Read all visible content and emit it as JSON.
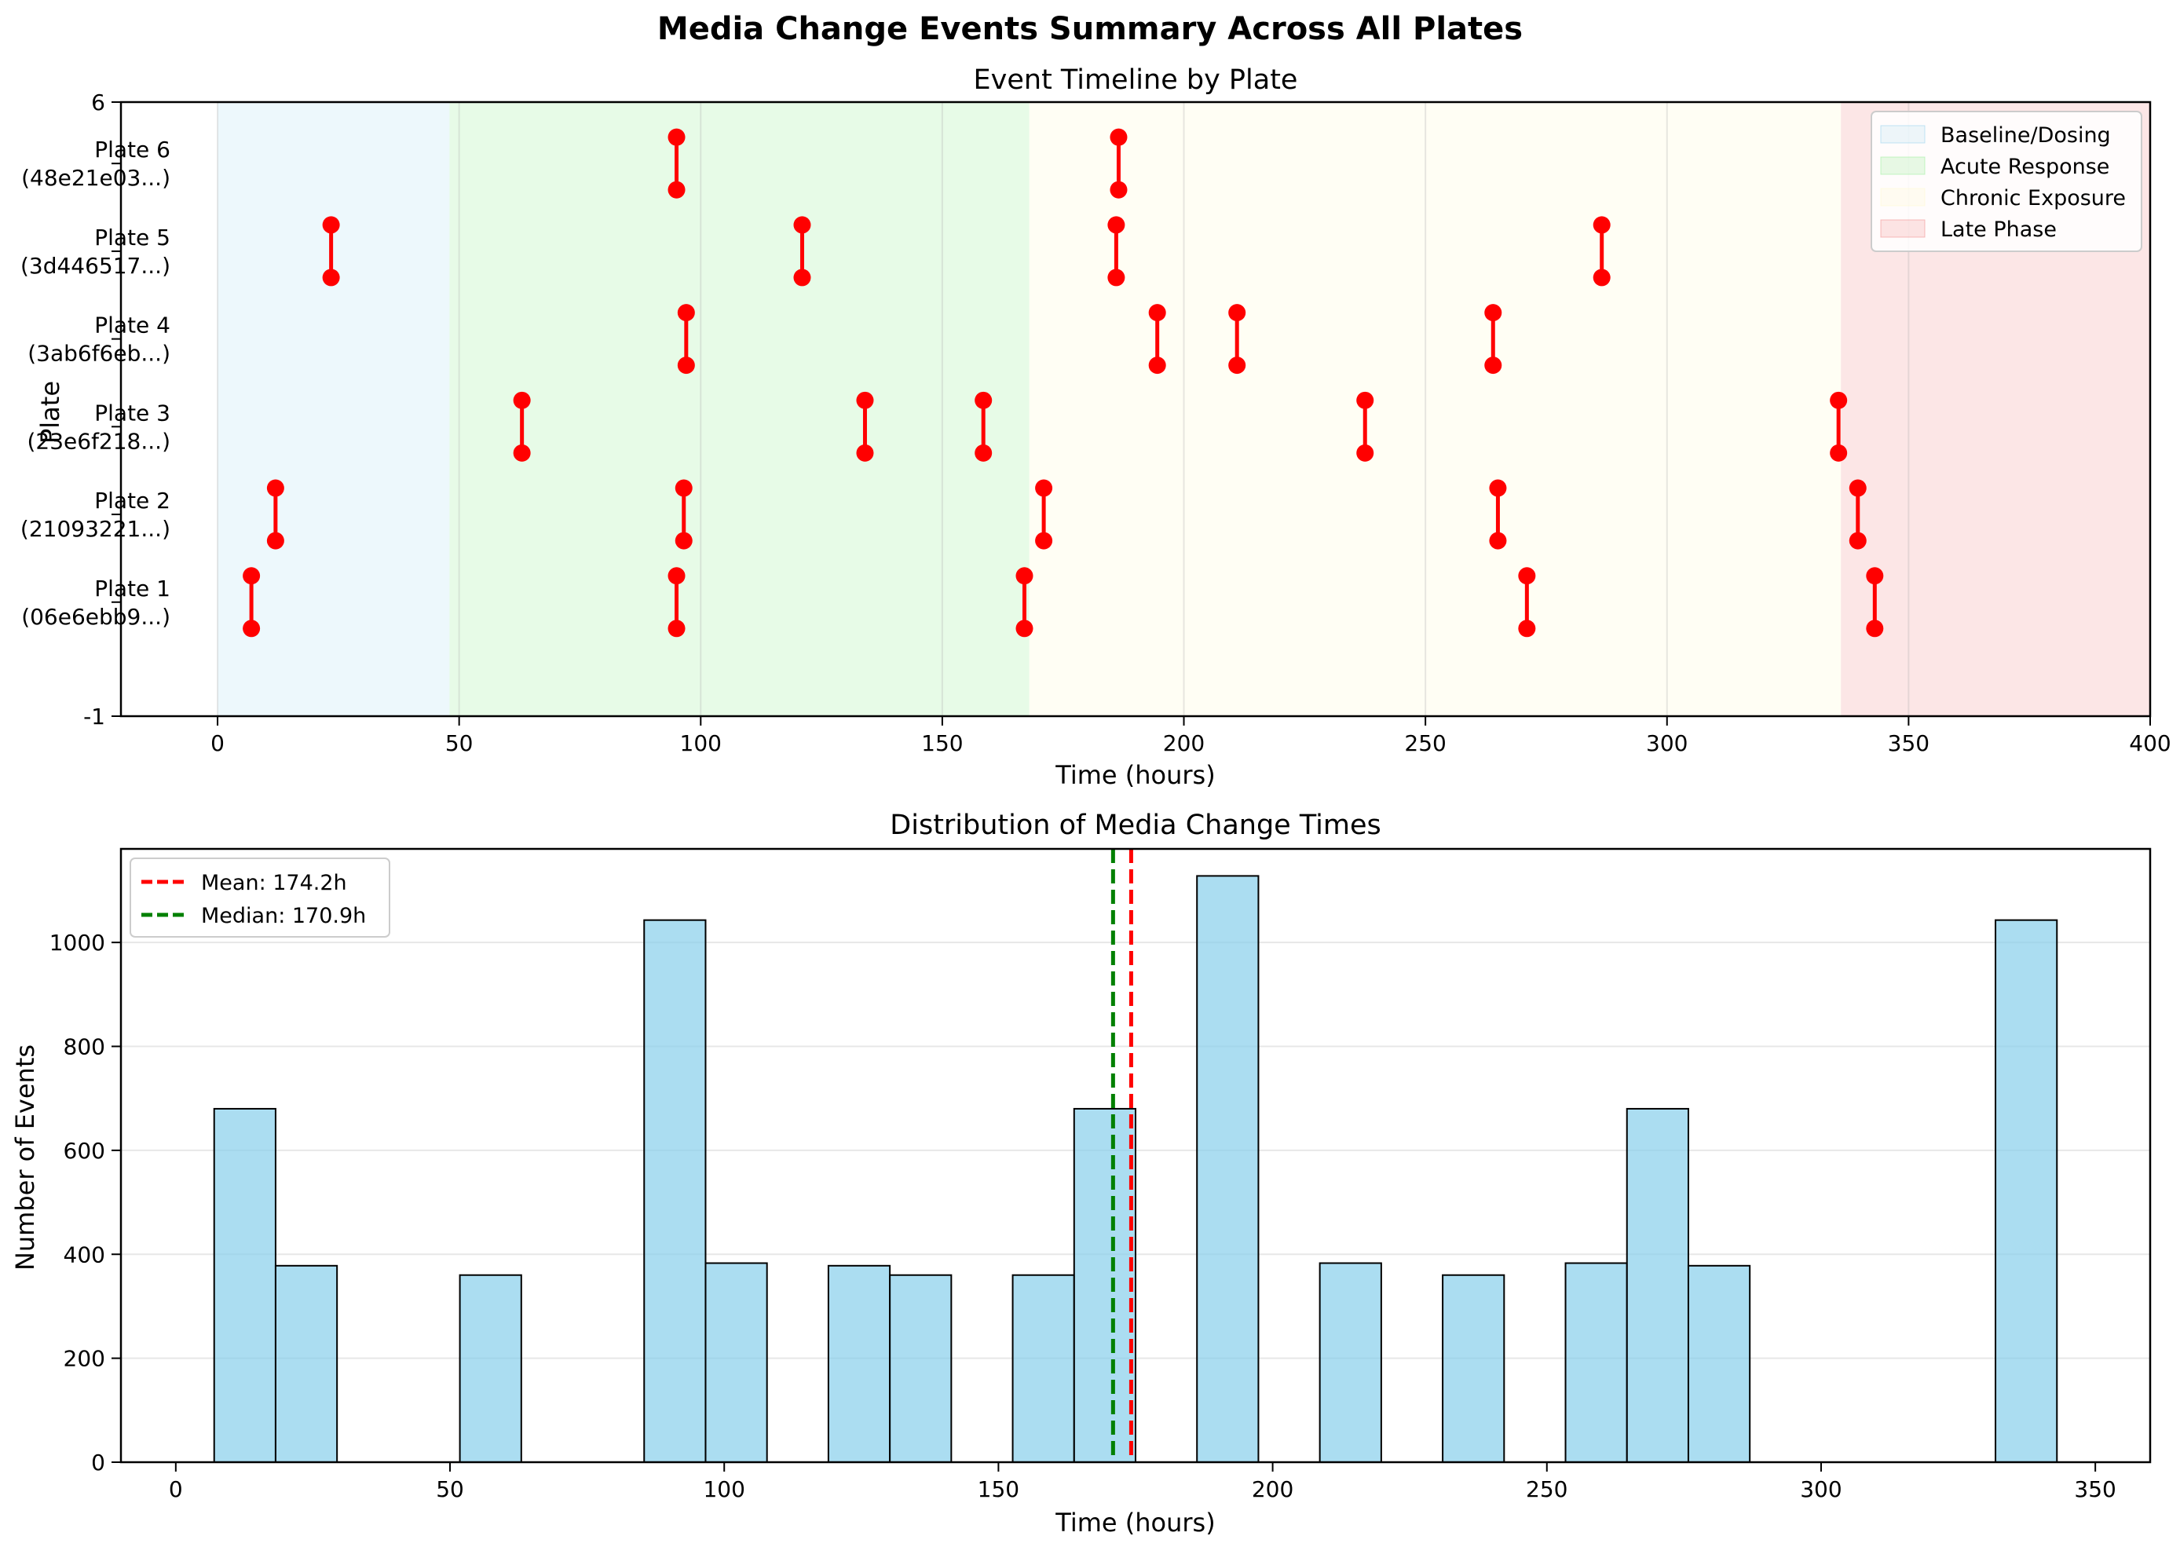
{
  "suptitle": "Media Change Events Summary Across All Plates",
  "chart_data": [
    {
      "type": "scatter",
      "title": "Event Timeline by Plate",
      "xlabel": "Time (hours)",
      "ylabel": "Plate",
      "xlim": [
        -20,
        400
      ],
      "ylim": [
        -1,
        6
      ],
      "xticks": [
        0,
        50,
        100,
        150,
        200,
        250,
        300,
        350,
        400
      ],
      "yticks": [
        -1,
        6
      ],
      "grid": "vertical",
      "plates": [
        {
          "label": "Plate 1\n(06e6ebb9...)",
          "line1": "Plate 1",
          "line2": "(06e6ebb9...)",
          "base": 0,
          "events": [
            7,
            95,
            167,
            271,
            343
          ]
        },
        {
          "label": "Plate 2\n(21093221...)",
          "line1": "Plate 2",
          "line2": "(21093221...)",
          "base": 1,
          "events": [
            12,
            96.5,
            171,
            265,
            339.5
          ]
        },
        {
          "label": "Plate 3\n(23e6f218...)",
          "line1": "Plate 3",
          "line2": "(23e6f218...)",
          "base": 2,
          "events": [
            63,
            134,
            158.5,
            237.5,
            335.5
          ]
        },
        {
          "label": "Plate 4\n(3ab6f6eb...)",
          "line1": "Plate 4",
          "line2": "(3ab6f6eb...)",
          "base": 3,
          "events": [
            97,
            194.5,
            211,
            264
          ]
        },
        {
          "label": "Plate 5\n(3d446517...)",
          "line1": "Plate 5",
          "line2": "(3d446517...)",
          "base": 4,
          "events": [
            23.5,
            121,
            186,
            286.5
          ]
        },
        {
          "label": "Plate 6\n(48e21e03...)",
          "line1": "Plate 6",
          "line2": "(48e21e03...)",
          "base": 5,
          "events": [
            95,
            186.5
          ]
        }
      ],
      "phases": [
        {
          "name": "Baseline/Dosing",
          "start": 0,
          "end": 48,
          "color": "#87ceeb",
          "alpha": 0.15
        },
        {
          "name": "Acute Response",
          "start": 48,
          "end": 168,
          "color": "#90ee90",
          "alpha": 0.22
        },
        {
          "name": "Chronic Exposure",
          "start": 168,
          "end": 336,
          "color": "#fffacd",
          "alpha": 0.22
        },
        {
          "name": "Late Phase",
          "start": 336,
          "end": 400,
          "color": "#f08080",
          "alpha": 0.2
        }
      ],
      "legend": "top-right",
      "marker_color": "#ff0000"
    },
    {
      "type": "bar",
      "title": "Distribution of Media Change Times",
      "xlabel": "Time (hours)",
      "ylabel": "Number of Events",
      "xlim": [
        -10,
        360
      ],
      "ylim": [
        0,
        1180
      ],
      "xticks": [
        0,
        50,
        100,
        150,
        200,
        250,
        300,
        350
      ],
      "yticks": [
        0,
        200,
        400,
        600,
        800,
        1000
      ],
      "grid": "horizontal",
      "bin_edges": [
        7,
        18.2,
        29.4,
        40.6,
        51.8,
        63,
        74.2,
        85.4,
        96.6,
        107.8,
        119,
        130.2,
        141.4,
        152.6,
        163.8,
        175,
        186.2,
        197.4,
        208.6,
        219.8,
        231,
        242.2,
        253.4,
        264.6,
        275.8,
        287,
        298.2,
        309.4,
        320.6,
        331.8,
        343
      ],
      "counts": [
        680,
        378,
        0,
        0,
        360,
        0,
        0,
        1043,
        383,
        0,
        378,
        360,
        0,
        360,
        680,
        0,
        1128,
        0,
        383,
        0,
        360,
        0,
        383,
        680,
        378,
        0,
        0,
        0,
        0,
        1043
      ],
      "bar_color": "#87ceeb",
      "mean": 174.2,
      "median": 170.9,
      "mean_label": "Mean: 174.2h",
      "median_label": "Median: 170.9h",
      "mean_color": "#ff0000",
      "median_color": "#008000",
      "legend": "top-left"
    }
  ]
}
